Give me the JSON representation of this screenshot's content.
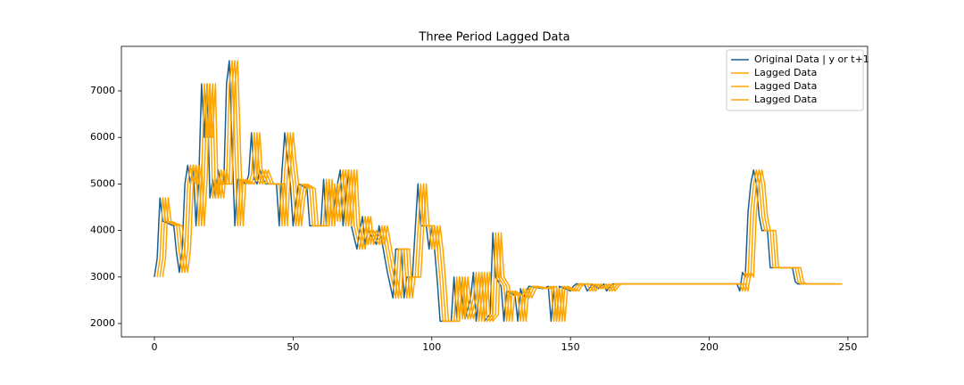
{
  "chart_data": {
    "type": "line",
    "title": "Three Period Lagged Data",
    "xlim": [
      -11.9,
      257.1
    ],
    "ylim": [
      1713,
      7958
    ],
    "xticks": [
      0,
      50,
      100,
      150,
      200,
      250
    ],
    "yticks": [
      2000,
      3000,
      4000,
      5000,
      6000,
      7000
    ],
    "grid": false,
    "legend": "upper right",
    "series": [
      {
        "name": "Original Data | y or t+1",
        "color": "#1a5f8e",
        "x": [
          0,
          1,
          2,
          3,
          7,
          8,
          9,
          10,
          11,
          12,
          13,
          14,
          15,
          16,
          17,
          18,
          19,
          20,
          21,
          22,
          23,
          24,
          25,
          26,
          27,
          28,
          29,
          30,
          33,
          34,
          35,
          36,
          37,
          38,
          40,
          44,
          45,
          46,
          47,
          48,
          49,
          50,
          51,
          52,
          55,
          56,
          60,
          61,
          62,
          63,
          64,
          66,
          67,
          68,
          70,
          71,
          73,
          74,
          75,
          76,
          77,
          80,
          81,
          84,
          86,
          87,
          89,
          90,
          91,
          93,
          94,
          95,
          96,
          98,
          99,
          100,
          101,
          102,
          103,
          107,
          108,
          109,
          110,
          111,
          112,
          114,
          115,
          116,
          118,
          119,
          121,
          122,
          123,
          125,
          126,
          127,
          130,
          131,
          132,
          133,
          135,
          140,
          142,
          143,
          144,
          145,
          146,
          150,
          151,
          152,
          155,
          156,
          158,
          160,
          162,
          163,
          165,
          210,
          211,
          212,
          213,
          214,
          215,
          216,
          217,
          218,
          219,
          221,
          222,
          230,
          231,
          232,
          245
        ],
        "values": [
          3000,
          3400,
          4700,
          4200,
          4100,
          3500,
          3100,
          3600,
          5000,
          5400,
          5000,
          5400,
          4100,
          5100,
          7150,
          6000,
          7150,
          4700,
          5100,
          4700,
          5300,
          5000,
          5000,
          7150,
          7650,
          5800,
          4100,
          5100,
          5000,
          5200,
          6100,
          5100,
          5000,
          5300,
          5000,
          5000,
          4100,
          5300,
          6100,
          5500,
          5000,
          4100,
          4600,
          5000,
          4900,
          4100,
          4100,
          5100,
          4100,
          5000,
          4200,
          5000,
          5300,
          4100,
          5300,
          4100,
          3600,
          4000,
          4300,
          3700,
          4000,
          3700,
          4100,
          3100,
          2550,
          3600,
          3600,
          2550,
          3000,
          3000,
          4000,
          5000,
          4100,
          4100,
          3600,
          4100,
          3600,
          2900,
          2050,
          2050,
          3000,
          2100,
          3000,
          2500,
          2100,
          2550,
          3100,
          2050,
          3100,
          2050,
          2200,
          3950,
          3000,
          2800,
          2050,
          2700,
          2600,
          2050,
          2750,
          2550,
          2800,
          2750,
          2800,
          2050,
          2750,
          2050,
          2800,
          2700,
          2800,
          2850,
          2850,
          2700,
          2850,
          2750,
          2850,
          2700,
          2850,
          2850,
          2700,
          3100,
          3000,
          4400,
          5000,
          5300,
          5000,
          4300,
          4000,
          4000,
          3200,
          3200,
          2900,
          2850,
          2850
        ]
      },
      {
        "name": "Lagged Data",
        "color": "#ffa500",
        "x": [
          1,
          2,
          3,
          4,
          8,
          9,
          10,
          11,
          12,
          13,
          14,
          15,
          16,
          17,
          18,
          19,
          20,
          21,
          22,
          23,
          24,
          25,
          26,
          27,
          28,
          29,
          30,
          31,
          34,
          35,
          36,
          37,
          38,
          39,
          41,
          45,
          46,
          47,
          48,
          49,
          50,
          51,
          52,
          53,
          56,
          57,
          61,
          62,
          63,
          64,
          65,
          67,
          68,
          69,
          71,
          72,
          74,
          75,
          76,
          77,
          78,
          81,
          82,
          85,
          87,
          88,
          90,
          91,
          92,
          94,
          95,
          96,
          97,
          99,
          100,
          101,
          102,
          103,
          104,
          108,
          109,
          110,
          111,
          112,
          113,
          115,
          116,
          117,
          119,
          120,
          122,
          123,
          124,
          126,
          127,
          128,
          131,
          132,
          133,
          134,
          136,
          141,
          143,
          144,
          145,
          146,
          147,
          151,
          152,
          153,
          156,
          157,
          159,
          161,
          163,
          164,
          166,
          211,
          212,
          213,
          214,
          215,
          216,
          217,
          218,
          219,
          220,
          222,
          223,
          231,
          232,
          233,
          246
        ],
        "values": [
          3000,
          3400,
          4700,
          4200,
          4100,
          3500,
          3100,
          3600,
          5000,
          5400,
          5000,
          5400,
          4100,
          5100,
          7150,
          6000,
          7150,
          4700,
          5100,
          4700,
          5300,
          5000,
          5000,
          7150,
          7650,
          5800,
          4100,
          5100,
          5000,
          5200,
          6100,
          5100,
          5000,
          5300,
          5000,
          5000,
          4100,
          5300,
          6100,
          5500,
          5000,
          4100,
          4600,
          5000,
          4900,
          4100,
          4100,
          5100,
          4100,
          5000,
          4200,
          5000,
          5300,
          4100,
          5300,
          4100,
          3600,
          4000,
          4300,
          3700,
          4000,
          3700,
          4100,
          3100,
          2550,
          3600,
          3600,
          2550,
          3000,
          3000,
          4000,
          5000,
          4100,
          4100,
          3600,
          4100,
          3600,
          2900,
          2050,
          2050,
          3000,
          2100,
          3000,
          2500,
          2100,
          2550,
          3100,
          2050,
          3100,
          2050,
          2200,
          3950,
          3000,
          2800,
          2050,
          2700,
          2600,
          2050,
          2750,
          2550,
          2800,
          2750,
          2800,
          2050,
          2750,
          2050,
          2800,
          2700,
          2800,
          2850,
          2850,
          2700,
          2850,
          2750,
          2850,
          2700,
          2850,
          2850,
          2700,
          3100,
          3000,
          4400,
          5000,
          5300,
          5000,
          4300,
          4000,
          4000,
          3200,
          3200,
          2900,
          2850,
          2850
        ]
      },
      {
        "name": "Lagged Data",
        "color": "#ffa500",
        "x": [
          2,
          3,
          4,
          5,
          9,
          10,
          11,
          12,
          13,
          14,
          15,
          16,
          17,
          18,
          19,
          20,
          21,
          22,
          23,
          24,
          25,
          26,
          27,
          28,
          29,
          30,
          31,
          32,
          35,
          36,
          37,
          38,
          39,
          40,
          42,
          46,
          47,
          48,
          49,
          50,
          51,
          52,
          53,
          54,
          57,
          58,
          62,
          63,
          64,
          65,
          66,
          68,
          69,
          70,
          72,
          73,
          75,
          76,
          77,
          78,
          79,
          82,
          83,
          86,
          88,
          89,
          91,
          92,
          93,
          95,
          96,
          97,
          98,
          100,
          101,
          102,
          103,
          104,
          105,
          109,
          110,
          111,
          112,
          113,
          114,
          116,
          117,
          118,
          120,
          121,
          123,
          124,
          125,
          127,
          128,
          129,
          132,
          133,
          134,
          135,
          137,
          142,
          144,
          145,
          146,
          147,
          148,
          152,
          153,
          154,
          157,
          158,
          160,
          162,
          164,
          165,
          167,
          212,
          213,
          214,
          215,
          216,
          217,
          218,
          219,
          220,
          221,
          223,
          224,
          232,
          233,
          234,
          247
        ],
        "values": [
          3000,
          3400,
          4700,
          4200,
          4100,
          3500,
          3100,
          3600,
          5000,
          5400,
          5000,
          5400,
          4100,
          5100,
          7150,
          6000,
          7150,
          4700,
          5100,
          4700,
          5300,
          5000,
          5000,
          7150,
          7650,
          5800,
          4100,
          5100,
          5000,
          5200,
          6100,
          5100,
          5000,
          5300,
          5000,
          5000,
          4100,
          5300,
          6100,
          5500,
          5000,
          4100,
          4600,
          5000,
          4900,
          4100,
          4100,
          5100,
          4100,
          5000,
          4200,
          5000,
          5300,
          4100,
          5300,
          4100,
          3600,
          4000,
          4300,
          3700,
          4000,
          3700,
          4100,
          3100,
          2550,
          3600,
          3600,
          2550,
          3000,
          3000,
          4000,
          5000,
          4100,
          4100,
          3600,
          4100,
          3600,
          2900,
          2050,
          2050,
          3000,
          2100,
          3000,
          2500,
          2100,
          2550,
          3100,
          2050,
          3100,
          2050,
          2200,
          3950,
          3000,
          2800,
          2050,
          2700,
          2600,
          2050,
          2750,
          2550,
          2800,
          2750,
          2800,
          2050,
          2750,
          2050,
          2800,
          2700,
          2800,
          2850,
          2850,
          2700,
          2850,
          2750,
          2850,
          2700,
          2850,
          2850,
          2700,
          3100,
          3000,
          4400,
          5000,
          5300,
          5000,
          4300,
          4000,
          4000,
          3200,
          3200,
          2900,
          2850,
          2850
        ]
      },
      {
        "name": "Lagged Data",
        "color": "#ffa500",
        "x": [
          3,
          4,
          5,
          6,
          10,
          11,
          12,
          13,
          14,
          15,
          16,
          17,
          18,
          19,
          20,
          21,
          22,
          23,
          24,
          25,
          26,
          27,
          28,
          29,
          30,
          31,
          32,
          33,
          36,
          37,
          38,
          39,
          40,
          41,
          43,
          47,
          48,
          49,
          50,
          51,
          52,
          53,
          54,
          55,
          58,
          59,
          63,
          64,
          65,
          66,
          67,
          69,
          70,
          71,
          73,
          74,
          76,
          77,
          78,
          79,
          80,
          83,
          84,
          87,
          89,
          90,
          92,
          93,
          94,
          96,
          97,
          98,
          99,
          101,
          102,
          103,
          104,
          105,
          106,
          110,
          111,
          112,
          113,
          114,
          115,
          117,
          118,
          119,
          121,
          122,
          124,
          125,
          126,
          128,
          129,
          130,
          133,
          134,
          135,
          136,
          138,
          143,
          145,
          146,
          147,
          148,
          149,
          153,
          154,
          155,
          158,
          159,
          161,
          163,
          165,
          166,
          168,
          213,
          214,
          215,
          216,
          217,
          218,
          219,
          220,
          221,
          222,
          224,
          225,
          233,
          234,
          235,
          248
        ],
        "values": [
          3000,
          3400,
          4700,
          4200,
          4100,
          3500,
          3100,
          3600,
          5000,
          5400,
          5000,
          5400,
          4100,
          5100,
          7150,
          6000,
          7150,
          4700,
          5100,
          4700,
          5300,
          5000,
          5000,
          7150,
          7650,
          5800,
          4100,
          5100,
          5000,
          5200,
          6100,
          5100,
          5000,
          5300,
          5000,
          5000,
          4100,
          5300,
          6100,
          5500,
          5000,
          4100,
          4600,
          5000,
          4900,
          4100,
          4100,
          5100,
          4100,
          5000,
          4200,
          5000,
          5300,
          4100,
          5300,
          4100,
          3600,
          4000,
          4300,
          3700,
          4000,
          3700,
          4100,
          3100,
          2550,
          3600,
          3600,
          2550,
          3000,
          3000,
          4000,
          5000,
          4100,
          4100,
          3600,
          4100,
          3600,
          2900,
          2050,
          2050,
          3000,
          2100,
          3000,
          2500,
          2100,
          2550,
          3100,
          2050,
          3100,
          2050,
          2200,
          3950,
          3000,
          2800,
          2050,
          2700,
          2600,
          2050,
          2750,
          2550,
          2800,
          2750,
          2800,
          2050,
          2750,
          2050,
          2800,
          2700,
          2800,
          2850,
          2850,
          2700,
          2850,
          2750,
          2850,
          2700,
          2850,
          2850,
          2700,
          3100,
          3000,
          4400,
          5000,
          5300,
          5000,
          4300,
          4000,
          4000,
          3200,
          3200,
          2900,
          2850,
          2850
        ]
      }
    ]
  }
}
